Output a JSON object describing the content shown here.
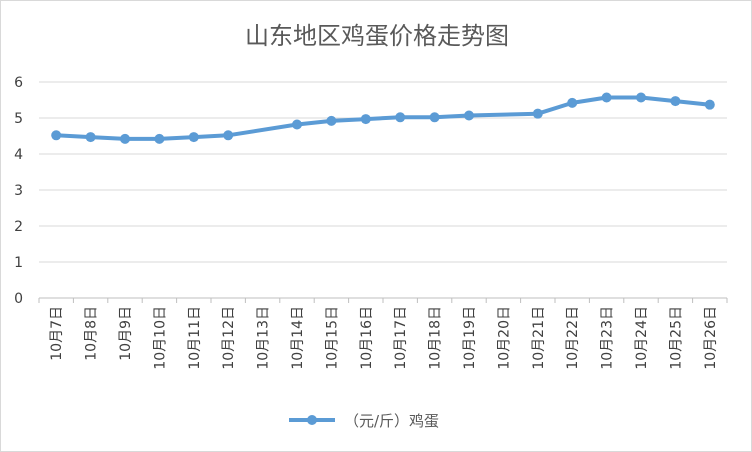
{
  "chart_data": {
    "type": "line",
    "title": "山东地区鸡蛋价格走势图",
    "xlabel": "",
    "ylabel": "",
    "categories": [
      "10月7日",
      "10月8日",
      "10月9日",
      "10月10日",
      "10月11日",
      "10月12日",
      "10月13日",
      "10月14日",
      "10月15日",
      "10月16日",
      "10月17日",
      "10月18日",
      "10月19日",
      "10月20日",
      "10月21日",
      "10月22日",
      "10月23日",
      "10月24日",
      "10月25日",
      "10月26日"
    ],
    "series": [
      {
        "name": "（元/斤）鸡蛋",
        "values": [
          4.52,
          4.47,
          4.42,
          4.42,
          4.47,
          4.52,
          null,
          4.82,
          4.92,
          4.97,
          5.02,
          5.02,
          5.07,
          null,
          5.12,
          5.42,
          5.57,
          5.57,
          5.47,
          5.37
        ],
        "color": "#5b9bd5"
      }
    ],
    "ylim": [
      0,
      6
    ],
    "yticks": [
      "0",
      "1",
      "2",
      "3",
      "4",
      "5",
      "6"
    ],
    "grid": true,
    "legend": "bottom",
    "connect_gaps": true
  }
}
